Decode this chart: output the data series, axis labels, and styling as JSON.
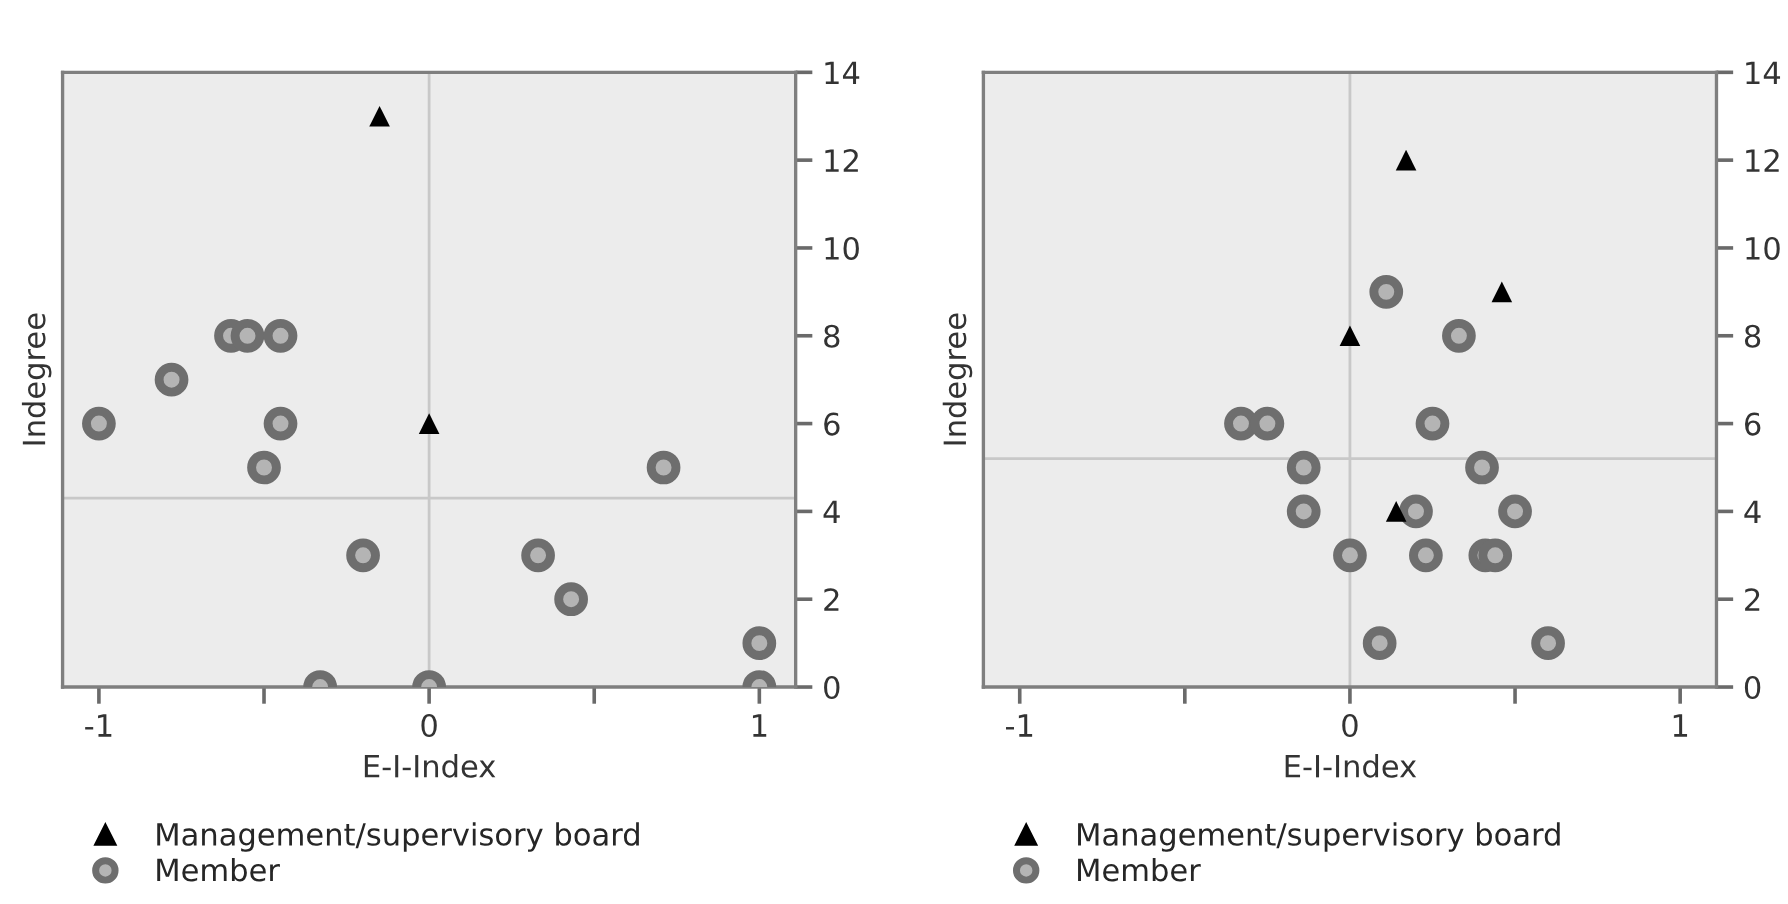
{
  "chart_data": [
    {
      "type": "scatter",
      "xlabel": "E-I-Index",
      "ylabel": "Indegree",
      "xlim": [
        -1.11,
        1.11
      ],
      "ylim": [
        0,
        14
      ],
      "xticks": [
        -1,
        0,
        1
      ],
      "yticks": [
        0,
        2,
        4,
        6,
        8,
        10,
        12,
        14
      ],
      "grid": false,
      "legend": "bottom",
      "ref_lines": [
        {
          "axis": "x",
          "value": 0,
          "color": "#c8c8c8"
        },
        {
          "axis": "y",
          "value": 4.3,
          "color": "#c8c8c8"
        }
      ],
      "series": [
        {
          "name": "Management/supervisory board",
          "color": "#000000",
          "marker": "triangle",
          "x": [
            -0.15,
            0
          ],
          "values": [
            13,
            6
          ]
        },
        {
          "name": "Member",
          "color": "#6e6e6e",
          "marker": "circle",
          "x": [
            -0.6,
            -0.55,
            -0.45,
            -0.78,
            -1,
            -0.45,
            -0.5,
            0.71,
            -0.2,
            0.33,
            0.43,
            1,
            -0.33,
            0,
            1
          ],
          "values": [
            8,
            8,
            8,
            7,
            6,
            6,
            5,
            5,
            3,
            3,
            2,
            1,
            0,
            0,
            0
          ]
        }
      ]
    },
    {
      "type": "scatter",
      "xlabel": "E-I-Index",
      "ylabel": "Indegree",
      "xlim": [
        -1.11,
        1.11
      ],
      "ylim": [
        0,
        14
      ],
      "xticks": [
        -1,
        0,
        1
      ],
      "yticks": [
        0,
        2,
        4,
        6,
        8,
        10,
        12,
        14
      ],
      "grid": false,
      "legend": "bottom",
      "ref_lines": [
        {
          "axis": "x",
          "value": 0,
          "color": "#c8c8c8"
        },
        {
          "axis": "y",
          "value": 5.2,
          "color": "#c8c8c8"
        }
      ],
      "series": [
        {
          "name": "Management/supervisory board",
          "color": "#000000",
          "marker": "triangle",
          "x": [
            0.17,
            0.46,
            0,
            0.14
          ],
          "values": [
            12,
            9,
            8,
            4
          ]
        },
        {
          "name": "Member",
          "color": "#6e6e6e",
          "marker": "circle",
          "x": [
            0.11,
            0.33,
            -0.33,
            -0.25,
            0.25,
            -0.14,
            0.4,
            -0.14,
            0.2,
            0.5,
            0,
            0.23,
            0.41,
            0.44,
            0.09,
            0.6
          ],
          "values": [
            9,
            8,
            6,
            6,
            6,
            5,
            5,
            4,
            4,
            4,
            3,
            3,
            3,
            3,
            1,
            1
          ]
        }
      ]
    }
  ]
}
